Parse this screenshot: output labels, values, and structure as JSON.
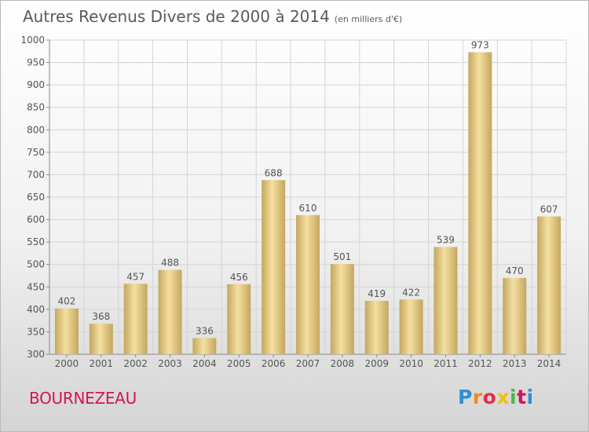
{
  "chart": {
    "title": "Autres Revenus Divers de 2000 à 2014",
    "subtitle": "(en milliers d'€)",
    "location": "BOURNEZEAU"
  },
  "brand": {
    "name": "Proxiti",
    "letter_colors": [
      "#2c8fd8",
      "#f08a1c",
      "#e0304a",
      "#f0c010",
      "#4cb848",
      "#d2145a",
      "#2c8fd8"
    ]
  },
  "colors": {
    "bar_light": "#f5dfa0",
    "bar_dark": "#c4a75e",
    "grid": "#d4d4d4",
    "text": "#555555"
  },
  "chart_data": {
    "type": "bar",
    "title": "Autres Revenus Divers de 2000 à 2014",
    "subtitle": "(en milliers d'€)",
    "xlabel": "",
    "ylabel": "",
    "categories": [
      "2000",
      "2001",
      "2002",
      "2003",
      "2004",
      "2005",
      "2006",
      "2007",
      "2008",
      "2009",
      "2010",
      "2011",
      "2012",
      "2013",
      "2014"
    ],
    "values": [
      402,
      368,
      457,
      488,
      336,
      456,
      688,
      610,
      501,
      419,
      422,
      539,
      973,
      470,
      607
    ],
    "ylim": [
      300,
      1000
    ],
    "yticks": [
      300,
      350,
      400,
      450,
      500,
      550,
      600,
      650,
      700,
      750,
      800,
      850,
      900,
      950,
      1000
    ],
    "grid": true
  }
}
